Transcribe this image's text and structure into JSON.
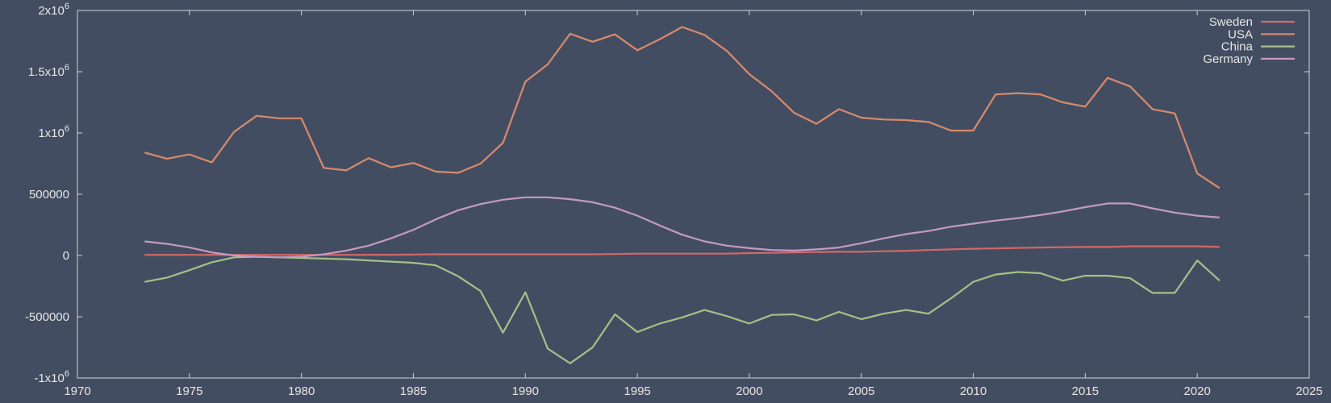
{
  "chart_data": {
    "type": "line",
    "title": "",
    "xlabel": "",
    "ylabel": "",
    "xlim": [
      1970,
      2025
    ],
    "ylim": [
      -1000000,
      2000000
    ],
    "grid": false,
    "legend_position": "top-right",
    "x_ticks": [
      {
        "value": 1970,
        "label": "1970"
      },
      {
        "value": 1975,
        "label": "1975"
      },
      {
        "value": 1980,
        "label": "1980"
      },
      {
        "value": 1985,
        "label": "1985"
      },
      {
        "value": 1990,
        "label": "1990"
      },
      {
        "value": 1995,
        "label": "1995"
      },
      {
        "value": 2000,
        "label": "2000"
      },
      {
        "value": 2005,
        "label": "2005"
      },
      {
        "value": 2010,
        "label": "2010"
      },
      {
        "value": 2015,
        "label": "2015"
      },
      {
        "value": 2020,
        "label": "2020"
      },
      {
        "value": 2025,
        "label": "2025"
      }
    ],
    "y_ticks": [
      {
        "value": 2000000,
        "base": "2x10",
        "exp": "6"
      },
      {
        "value": 1500000,
        "base": "1.5x10",
        "exp": "6"
      },
      {
        "value": 1000000,
        "base": "1x10",
        "exp": "6"
      },
      {
        "value": 500000,
        "base": "500000",
        "exp": ""
      },
      {
        "value": 0,
        "base": "0",
        "exp": ""
      },
      {
        "value": -500000,
        "base": "-500000",
        "exp": ""
      },
      {
        "value": -1000000,
        "base": "-1x10",
        "exp": "6"
      }
    ],
    "x": [
      1973,
      1974,
      1975,
      1976,
      1977,
      1978,
      1979,
      1980,
      1981,
      1982,
      1983,
      1984,
      1985,
      1986,
      1987,
      1988,
      1989,
      1990,
      1991,
      1992,
      1993,
      1994,
      1995,
      1996,
      1997,
      1998,
      1999,
      2000,
      2001,
      2002,
      2003,
      2004,
      2005,
      2006,
      2007,
      2008,
      2009,
      2010,
      2011,
      2012,
      2013,
      2014,
      2015,
      2016,
      2017,
      2018,
      2019,
      2020,
      2021
    ],
    "series": [
      {
        "name": "Sweden",
        "color": "#d2686a",
        "values": [
          5000,
          5000,
          5000,
          5000,
          5000,
          5000,
          5000,
          5000,
          5000,
          5000,
          6000,
          6000,
          8000,
          10000,
          10000,
          10000,
          10000,
          10000,
          10000,
          10000,
          10000,
          12000,
          15000,
          15000,
          15000,
          15000,
          15000,
          20000,
          22000,
          25000,
          28000,
          30000,
          30000,
          35000,
          38000,
          45000,
          50000,
          55000,
          58000,
          62000,
          65000,
          68000,
          70000,
          70000,
          75000,
          75000,
          75000,
          75000,
          70000
        ]
      },
      {
        "name": "USA",
        "color": "#d98a6c",
        "values": [
          840000,
          790000,
          825000,
          760000,
          1010000,
          1140000,
          1120000,
          1120000,
          715000,
          695000,
          795000,
          720000,
          755000,
          685000,
          675000,
          750000,
          920000,
          1420000,
          1560000,
          1810000,
          1745000,
          1805000,
          1675000,
          1765000,
          1865000,
          1800000,
          1670000,
          1480000,
          1340000,
          1165000,
          1075000,
          1195000,
          1125000,
          1110000,
          1105000,
          1090000,
          1020000,
          1020000,
          1315000,
          1325000,
          1315000,
          1250000,
          1215000,
          1450000,
          1380000,
          1195000,
          1160000,
          670000,
          550000
        ]
      },
      {
        "name": "China",
        "color": "#a4c187",
        "values": [
          -215000,
          -180000,
          -120000,
          -55000,
          -15000,
          -10000,
          -15000,
          -20000,
          -25000,
          -30000,
          -40000,
          -50000,
          -60000,
          -80000,
          -170000,
          -290000,
          -630000,
          -300000,
          -760000,
          -880000,
          -750000,
          -480000,
          -625000,
          -555000,
          -505000,
          -445000,
          -495000,
          -555000,
          -485000,
          -480000,
          -530000,
          -460000,
          -520000,
          -475000,
          -445000,
          -475000,
          -350000,
          -215000,
          -155000,
          -135000,
          -145000,
          -205000,
          -165000,
          -165000,
          -185000,
          -305000,
          -305000,
          -40000,
          -205000
        ]
      },
      {
        "name": "Germany",
        "color": "#c39ac2",
        "values": [
          115000,
          95000,
          65000,
          25000,
          0,
          -10000,
          -15000,
          -10000,
          10000,
          40000,
          80000,
          140000,
          210000,
          295000,
          370000,
          420000,
          455000,
          475000,
          475000,
          460000,
          435000,
          390000,
          325000,
          245000,
          170000,
          115000,
          80000,
          60000,
          45000,
          40000,
          50000,
          65000,
          100000,
          140000,
          175000,
          200000,
          235000,
          260000,
          285000,
          305000,
          330000,
          360000,
          395000,
          425000,
          425000,
          385000,
          350000,
          325000,
          310000
        ]
      }
    ]
  }
}
